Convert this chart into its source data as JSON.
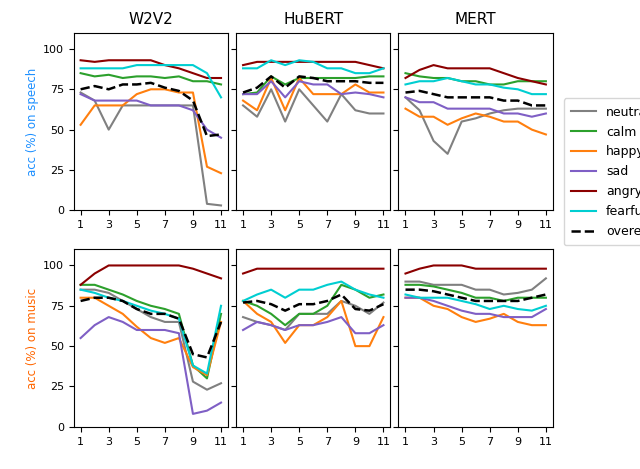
{
  "col_titles": [
    "W2V2",
    "HuBERT",
    "MERT"
  ],
  "row_labels": [
    "acc (%) on speech",
    "acc (%) on music"
  ],
  "row_label_colors": [
    "#1e90ff",
    "#ff6600"
  ],
  "xticks": [
    1,
    3,
    5,
    7,
    9,
    11
  ],
  "x": [
    1,
    2,
    3,
    4,
    5,
    6,
    7,
    8,
    9,
    10,
    11
  ],
  "colors": {
    "neutral": "#808080",
    "calm": "#2ca02c",
    "happy": "#ff7f0e",
    "sad": "#7f5fc5",
    "angry": "#8b0000",
    "fearful": "#00ced1",
    "overall": "#000000"
  },
  "legend_labels": [
    "neutral",
    "calm",
    "happy",
    "sad",
    "angry",
    "fearful",
    "overeall"
  ],
  "speech_w2v2": {
    "neutral": [
      73,
      68,
      50,
      65,
      65,
      65,
      65,
      65,
      65,
      4,
      3
    ],
    "calm": [
      85,
      83,
      84,
      82,
      83,
      83,
      82,
      83,
      80,
      80,
      78
    ],
    "happy": [
      53,
      65,
      65,
      65,
      72,
      75,
      75,
      73,
      73,
      27,
      23
    ],
    "sad": [
      72,
      68,
      68,
      68,
      68,
      65,
      65,
      65,
      62,
      50,
      45
    ],
    "angry": [
      93,
      92,
      93,
      93,
      93,
      93,
      90,
      88,
      85,
      82,
      82
    ],
    "fearful": [
      88,
      88,
      88,
      88,
      90,
      90,
      90,
      90,
      90,
      85,
      70
    ],
    "overall": [
      75,
      77,
      75,
      78,
      78,
      79,
      76,
      74,
      68,
      46,
      47
    ]
  },
  "speech_hubert": {
    "neutral": [
      65,
      58,
      75,
      55,
      75,
      65,
      55,
      72,
      62,
      60,
      60
    ],
    "calm": [
      72,
      73,
      83,
      78,
      82,
      82,
      82,
      82,
      82,
      83,
      83
    ],
    "happy": [
      68,
      62,
      82,
      62,
      82,
      72,
      72,
      72,
      78,
      73,
      73
    ],
    "sad": [
      72,
      72,
      80,
      70,
      80,
      78,
      78,
      72,
      73,
      72,
      70
    ],
    "angry": [
      90,
      92,
      92,
      92,
      92,
      92,
      92,
      92,
      92,
      90,
      88
    ],
    "fearful": [
      88,
      88,
      93,
      90,
      93,
      92,
      88,
      88,
      85,
      85,
      88
    ],
    "overall": [
      73,
      76,
      83,
      76,
      83,
      82,
      80,
      80,
      80,
      79,
      79
    ]
  },
  "speech_mert": {
    "neutral": [
      70,
      62,
      43,
      35,
      55,
      57,
      60,
      62,
      63,
      63,
      63
    ],
    "calm": [
      85,
      83,
      82,
      82,
      80,
      80,
      78,
      78,
      80,
      80,
      80
    ],
    "happy": [
      63,
      58,
      58,
      53,
      57,
      60,
      58,
      55,
      55,
      50,
      47
    ],
    "sad": [
      70,
      67,
      67,
      63,
      63,
      63,
      63,
      60,
      60,
      58,
      60
    ],
    "angry": [
      82,
      87,
      90,
      88,
      88,
      88,
      88,
      85,
      82,
      80,
      78
    ],
    "fearful": [
      78,
      80,
      80,
      82,
      80,
      78,
      78,
      76,
      75,
      72,
      72
    ],
    "overall": [
      73,
      74,
      72,
      70,
      70,
      70,
      70,
      68,
      68,
      65,
      65
    ]
  },
  "music_w2v2": {
    "neutral": [
      85,
      85,
      83,
      78,
      73,
      68,
      65,
      65,
      28,
      23,
      27
    ],
    "calm": [
      88,
      88,
      85,
      82,
      78,
      75,
      73,
      70,
      38,
      30,
      70
    ],
    "happy": [
      80,
      80,
      75,
      70,
      62,
      55,
      52,
      55,
      37,
      32,
      65
    ],
    "sad": [
      55,
      63,
      68,
      65,
      60,
      60,
      60,
      58,
      8,
      10,
      15
    ],
    "angry": [
      88,
      95,
      100,
      100,
      100,
      100,
      100,
      100,
      98,
      95,
      92
    ],
    "fearful": [
      85,
      83,
      80,
      78,
      75,
      72,
      70,
      67,
      38,
      33,
      75
    ],
    "overall": [
      78,
      80,
      80,
      78,
      73,
      70,
      70,
      67,
      45,
      43,
      65
    ]
  },
  "music_hubert": {
    "neutral": [
      68,
      65,
      63,
      60,
      70,
      70,
      70,
      78,
      75,
      70,
      77
    ],
    "calm": [
      78,
      75,
      70,
      63,
      70,
      70,
      75,
      88,
      85,
      80,
      82
    ],
    "happy": [
      78,
      70,
      65,
      52,
      63,
      63,
      68,
      78,
      50,
      50,
      68
    ],
    "sad": [
      60,
      65,
      63,
      60,
      63,
      63,
      65,
      68,
      58,
      58,
      63
    ],
    "angry": [
      95,
      98,
      98,
      98,
      98,
      98,
      98,
      98,
      98,
      98,
      98
    ],
    "fearful": [
      78,
      82,
      85,
      80,
      85,
      85,
      88,
      90,
      85,
      82,
      80
    ],
    "overall": [
      77,
      78,
      76,
      72,
      76,
      76,
      78,
      82,
      73,
      72,
      76
    ]
  },
  "music_mert": {
    "neutral": [
      90,
      90,
      88,
      88,
      88,
      85,
      85,
      82,
      83,
      85,
      92
    ],
    "calm": [
      88,
      88,
      87,
      85,
      83,
      80,
      80,
      78,
      80,
      80,
      80
    ],
    "happy": [
      80,
      80,
      75,
      73,
      68,
      65,
      67,
      70,
      65,
      63,
      63
    ],
    "sad": [
      80,
      80,
      78,
      75,
      72,
      70,
      70,
      68,
      68,
      68,
      73
    ],
    "angry": [
      95,
      98,
      100,
      100,
      100,
      98,
      98,
      98,
      98,
      98,
      98
    ],
    "fearful": [
      82,
      80,
      80,
      80,
      78,
      76,
      73,
      75,
      73,
      72,
      75
    ],
    "overall": [
      85,
      85,
      84,
      82,
      80,
      78,
      78,
      78,
      78,
      80,
      82
    ]
  }
}
